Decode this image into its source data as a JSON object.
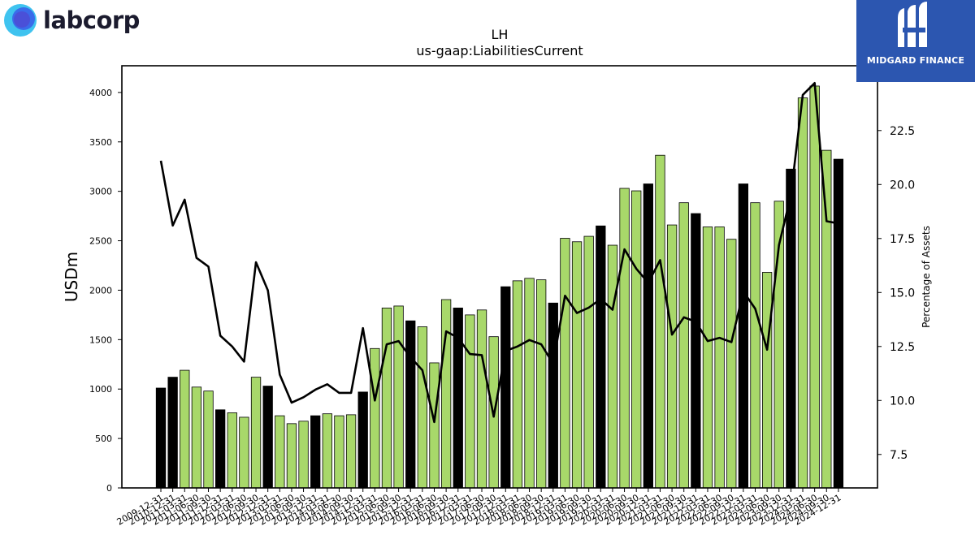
{
  "branding": {
    "company": "labcorp",
    "partner": "MIDGARD FINANCE",
    "company_icon": "labcorp-logo-icon",
    "partner_icon": "midgard-logo-icon"
  },
  "chart_data": {
    "type": "bar",
    "title": "LH",
    "subtitle": "us-gaap:LiabilitiesCurrent",
    "ylabel": "USDm",
    "y2label": "Percentage of Assets",
    "ylim": [
      0,
      4270
    ],
    "y2lim": [
      5.95,
      25.5
    ],
    "yticks": [
      0,
      500,
      1000,
      1500,
      2000,
      2500,
      3000,
      3500,
      4000
    ],
    "y2ticks": [
      7.5,
      10.0,
      12.5,
      15.0,
      17.5,
      20.0,
      22.5
    ],
    "grid": false,
    "colors": {
      "annual": "#000000",
      "quarterly": "#a8d86a",
      "line": "#000000"
    },
    "categories": [
      "2009-12-31",
      "2010-12-31",
      "2011-03-31",
      "2011-06-30",
      "2011-09-30",
      "2011-12-31",
      "2012-03-31",
      "2012-06-30",
      "2012-09-30",
      "2012-12-31",
      "2013-03-31",
      "2013-06-30",
      "2013-09-30",
      "2013-12-31",
      "2014-03-31",
      "2014-06-30",
      "2014-09-30",
      "2014-12-31",
      "2015-03-31",
      "2015-06-30",
      "2015-09-30",
      "2015-12-31",
      "2016-03-31",
      "2016-06-30",
      "2016-09-30",
      "2016-12-31",
      "2017-03-31",
      "2017-06-30",
      "2017-09-30",
      "2017-12-31",
      "2018-03-31",
      "2018-06-30",
      "2018-09-30",
      "2018-12-31",
      "2019-03-31",
      "2019-06-30",
      "2019-09-30",
      "2019-12-31",
      "2020-03-31",
      "2020-06-30",
      "2020-09-30",
      "2020-12-31",
      "2021-03-31",
      "2021-06-30",
      "2021-09-30",
      "2021-12-31",
      "2022-03-31",
      "2022-06-30",
      "2022-09-30",
      "2022-12-31",
      "2023-03-31",
      "2023-06-30",
      "2023-09-30",
      "2023-12-31",
      "2024-03-31",
      "2024-06-30",
      "2024-09-30",
      "2024-12-31"
    ],
    "values": [
      1010,
      1120,
      1190,
      1020,
      980,
      790,
      760,
      715,
      1120,
      1030,
      730,
      650,
      675,
      730,
      750,
      730,
      740,
      970,
      1410,
      1820,
      1840,
      1690,
      1630,
      1265,
      1905,
      1820,
      1750,
      1800,
      1530,
      2035,
      2095,
      2120,
      2105,
      1870,
      2525,
      2490,
      2545,
      2650,
      2455,
      3030,
      3005,
      3075,
      3365,
      2660,
      2885,
      2775,
      2640,
      2640,
      2515,
      3075,
      2885,
      2180,
      2900,
      3225,
      3945,
      4065,
      3415,
      3325
    ],
    "annual": [
      true,
      true,
      false,
      false,
      false,
      true,
      false,
      false,
      false,
      true,
      false,
      false,
      false,
      true,
      false,
      false,
      false,
      true,
      false,
      false,
      false,
      true,
      false,
      false,
      false,
      true,
      false,
      false,
      false,
      true,
      false,
      false,
      false,
      true,
      false,
      false,
      false,
      true,
      false,
      false,
      false,
      true,
      false,
      false,
      false,
      true,
      false,
      false,
      false,
      true,
      false,
      false,
      false,
      true,
      false,
      false,
      false,
      true
    ],
    "pct_assets": [
      21.1,
      18.1,
      19.3,
      16.6,
      16.2,
      13.0,
      12.5,
      11.8,
      16.4,
      15.1,
      11.2,
      9.9,
      10.15,
      10.5,
      10.75,
      10.35,
      10.35,
      13.35,
      10.0,
      12.6,
      12.75,
      12.0,
      11.4,
      9.0,
      13.2,
      12.9,
      12.15,
      12.1,
      9.25,
      12.3,
      12.5,
      12.8,
      12.6,
      11.7,
      14.85,
      14.05,
      14.3,
      14.7,
      14.2,
      17.0,
      16.1,
      15.45,
      16.5,
      13.05,
      13.85,
      13.65,
      12.75,
      12.9,
      12.7,
      15.05,
      14.25,
      12.35,
      17.2,
      19.5,
      24.15,
      24.7,
      18.3,
      18.2
    ]
  }
}
